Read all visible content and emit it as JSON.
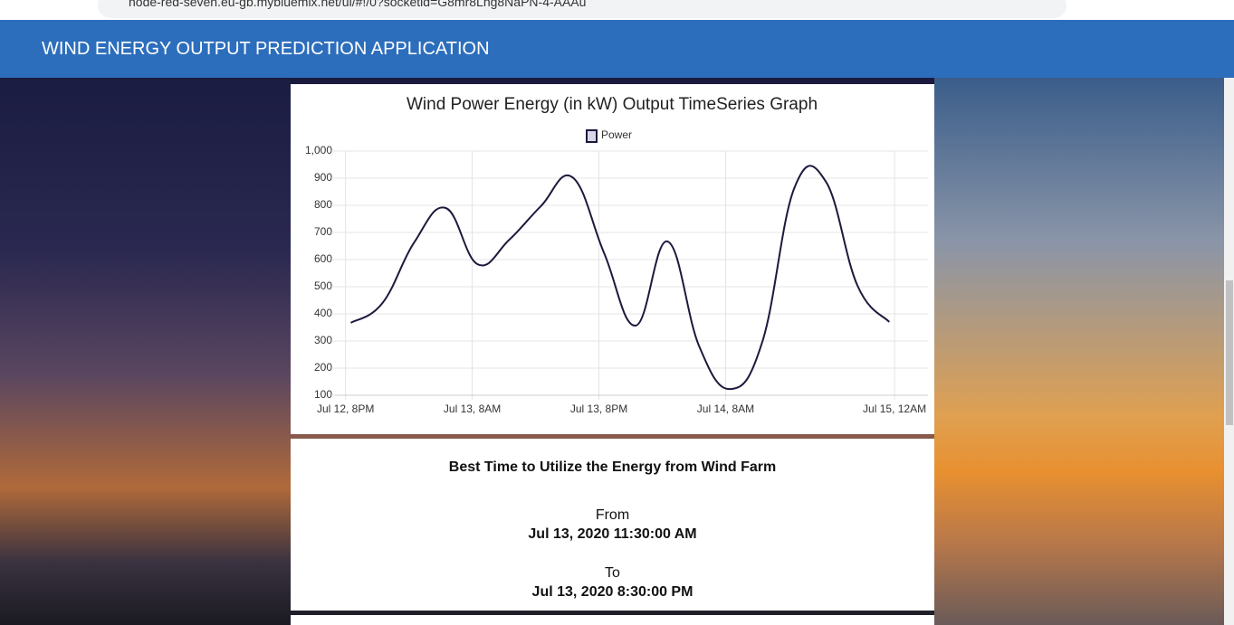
{
  "browser": {
    "url": "node-red-seven.eu-gb.mybluemix.net/ui/#!/0?socketid=G8mr8Lng8NaPN-4-AAAu"
  },
  "header": {
    "title": "WIND ENERGY OUTPUT PREDICTION APPLICATION"
  },
  "chart_data": {
    "type": "line",
    "title": "Wind Power Energy (in kW) Output TimeSeries Graph",
    "x": [
      "07-12 20:30",
      "07-12 23:30",
      "07-13 02:30",
      "07-13 05:30",
      "07-13 08:30",
      "07-13 11:30",
      "07-13 14:30",
      "07-13 17:30",
      "07-13 20:30",
      "07-13 23:30",
      "07-14 02:30",
      "07-14 05:30",
      "07-14 08:30",
      "07-14 11:30",
      "07-14 14:30",
      "07-14 17:30",
      "07-14 20:30",
      "07-14 23:30"
    ],
    "series": [
      {
        "name": "Power",
        "color": "#1c1a3c",
        "values": [
          367,
          440,
          663,
          790,
          583,
          673,
          797,
          903,
          623,
          357,
          667,
          280,
          123,
          300,
          863,
          887,
          503,
          370
        ]
      }
    ],
    "xlim": [
      "07-12 19:00",
      "07-15 03:10"
    ],
    "xticks": [
      {
        "value": "07-12 20:00",
        "label": "Jul 12, 8PM"
      },
      {
        "value": "07-13 08:00",
        "label": "Jul 13, 8AM"
      },
      {
        "value": "07-13 20:00",
        "label": "Jul 13, 8PM"
      },
      {
        "value": "07-14 08:00",
        "label": "Jul 14, 8AM"
      },
      {
        "value": "07-15 00:00",
        "label": "Jul 15, 12AM"
      }
    ],
    "ylim": [
      100,
      1000
    ],
    "yticks": [
      100,
      200,
      300,
      400,
      500,
      600,
      700,
      800,
      900,
      {
        "value": 1000,
        "label": "1,000"
      }
    ],
    "grid": true,
    "legend": "top"
  },
  "best_time": {
    "title": "Best Time to Utilize the Energy from Wind Farm",
    "from_label": "From",
    "from": "Jul 13, 2020 11:30:00 AM",
    "to_label": "To",
    "to": "Jul 13, 2020 8:30:00 PM"
  }
}
